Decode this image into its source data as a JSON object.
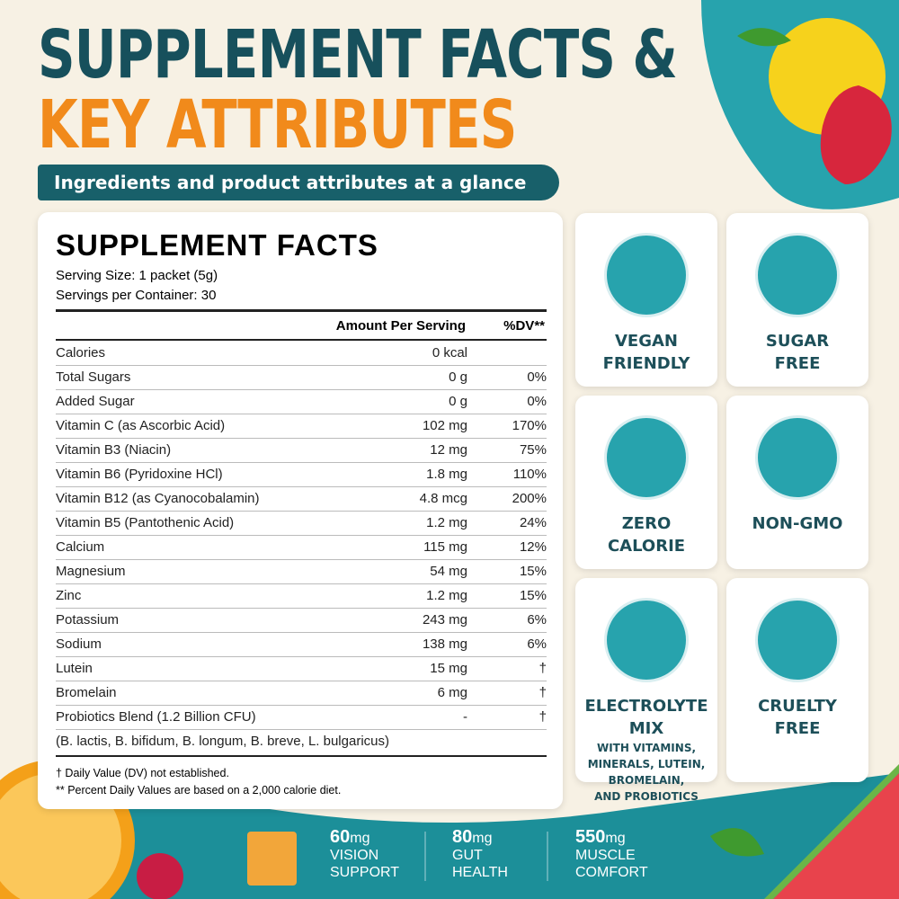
{
  "header": {
    "title_line1": "SUPPLEMENT FACTS &",
    "title_line2": "KEY ATTRIBUTES",
    "subtitle": "Ingredients and product attributes at a glance"
  },
  "facts": {
    "title": "SUPPLEMENT FACTS",
    "serving_size": "Serving Size: 1 packet (5g)",
    "servings": "Servings per Container: 30",
    "columns": [
      "Amount Per Serving",
      "%DV**"
    ],
    "rows": [
      [
        "Calories",
        "0 kcal",
        null
      ],
      [
        "Total Sugars",
        "0 g",
        "0%"
      ],
      [
        "Added Sugar",
        "0 g",
        "0%"
      ],
      [
        "Vitamin C (as Ascorbic Acid)",
        "102 mg",
        "170%"
      ],
      [
        "Vitamin B3 (Niacin)",
        "12 mg",
        "75%"
      ],
      [
        "Vitamin B6 (Pyridoxine HCl)",
        "1.8 mg",
        "110%"
      ],
      [
        "Vitamin B12 (as Cyanocobalamin)",
        "4.8 mcg",
        "200%"
      ],
      [
        "Vitamin B5 (Pantothenic Acid)",
        "1.2 mg",
        "24%"
      ],
      [
        "Calcium",
        "115 mg",
        "12%"
      ],
      [
        "Magnesium",
        "54 mg",
        "15%"
      ],
      [
        "Zinc",
        "1.2 mg",
        "15%"
      ],
      [
        "Potassium",
        "243 mg",
        "6%"
      ],
      [
        "Sodium",
        "138 mg",
        "6%"
      ],
      [
        "Lutein",
        "15 mg",
        "†"
      ],
      [
        "Bromelain",
        "6 mg",
        "†"
      ],
      [
        "Probiotics Blend (1.2 Billion CFU)",
        "-",
        "†"
      ]
    ],
    "probiotic_strains": "(B. lactis, B. bifidum, B. longum, B. breve, L. bulgaricus)",
    "footnotes": [
      "† Daily Value (DV) not established.",
      "** Percent Daily Values are based on a 2,000 calorie diet."
    ]
  },
  "attributes": [
    {
      "lines": [
        "VEGAN",
        "FRIENDLY"
      ]
    },
    {
      "lines": [
        "SUGAR",
        "FREE"
      ]
    },
    {
      "lines": [
        "ZERO",
        "CALORIE"
      ]
    },
    {
      "lines": [
        "NON-GMO"
      ]
    },
    {
      "lines": [
        "ELECTROLYTE MIX"
      ],
      "details": [
        "WITH VITAMINS,",
        "MINERALS, LUTEIN,",
        "BROMELAIN,",
        "AND PROBIOTICS"
      ]
    },
    {
      "lines": [
        "CRUELTY",
        "FREE"
      ]
    }
  ],
  "stats": [
    {
      "amount": "60",
      "unit": "mg",
      "lines": [
        "VISION",
        "SUPPORT"
      ]
    },
    {
      "amount": "80",
      "unit": "mg",
      "lines": [
        "GUT",
        "HEALTH"
      ]
    },
    {
      "amount": "550",
      "unit": "mg",
      "lines": [
        "MUSCLE",
        "COMFORT"
      ]
    }
  ]
}
